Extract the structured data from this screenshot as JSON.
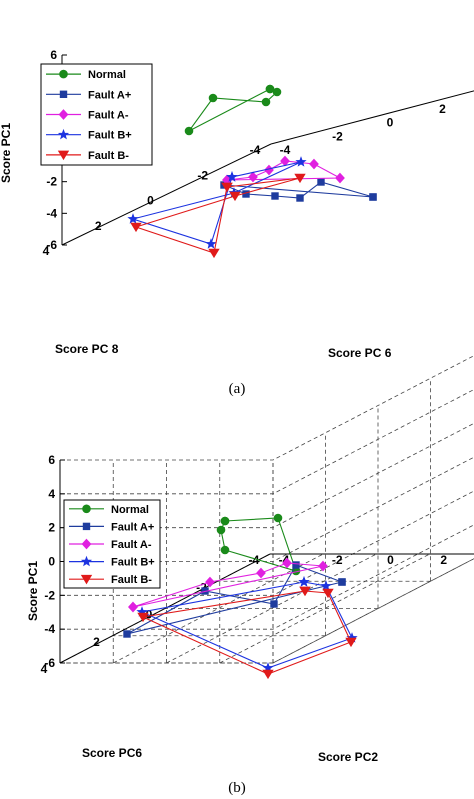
{
  "chart_data": [
    {
      "type": "scatter",
      "panel_label": "(a)",
      "zlabel": "Score PC1",
      "xlabel": "Score PC 8",
      "ylabel": "Score PC 6",
      "zticks": [
        "6",
        "4",
        "2",
        "0",
        "-2",
        "-4",
        "-6"
      ],
      "xticks": [
        "4",
        "2",
        "0",
        "-2",
        "-4"
      ],
      "yticks": [
        "-4",
        "-2",
        "0",
        "2",
        "4"
      ],
      "grid": true,
      "legend_position": "top-left",
      "series": [
        {
          "name": "Normal",
          "color": "#1a8a1a",
          "marker": "circle",
          "points": [
            [
              270,
              89
            ],
            [
              277,
              92
            ],
            [
              266,
              102
            ],
            [
              213,
              98
            ],
            [
              189,
              131
            ],
            [
              270,
              89
            ]
          ]
        },
        {
          "name": "Fault A+",
          "color": "#1f3c9e",
          "marker": "square",
          "points": [
            [
              373,
              197
            ],
            [
              321,
              182
            ],
            [
              300,
              198
            ],
            [
              275,
              196
            ],
            [
              246,
              194
            ],
            [
              224,
              185
            ],
            [
              373,
              197
            ]
          ]
        },
        {
          "name": "Fault A-",
          "color": "#e020e0",
          "marker": "diamond",
          "points": [
            [
              227,
              180
            ],
            [
              253,
              177
            ],
            [
              269,
              170
            ],
            [
              285,
              161
            ],
            [
              314,
              164
            ],
            [
              340,
              178
            ],
            [
              227,
              180
            ]
          ]
        },
        {
          "name": "Fault B+",
          "color": "#1c33e0",
          "marker": "star",
          "points": [
            [
              232,
              177
            ],
            [
              211,
              244
            ],
            [
              133,
              219
            ],
            [
              234,
              193
            ],
            [
              301,
              162
            ],
            [
              232,
              177
            ]
          ]
        },
        {
          "name": "Fault B-",
          "color": "#e01a1a",
          "marker": "triangle",
          "points": [
            [
              227,
              187
            ],
            [
              214,
              253
            ],
            [
              136,
              227
            ],
            [
              235,
              196
            ],
            [
              300,
              178
            ],
            [
              227,
              187
            ]
          ]
        }
      ]
    },
    {
      "type": "scatter",
      "panel_label": "(b)",
      "zlabel": "Score PC1",
      "xlabel": "Score PC6",
      "ylabel": "Score PC2",
      "zticks": [
        "6",
        "4",
        "2",
        "0",
        "-2",
        "-4",
        "-6"
      ],
      "xticks": [
        "4",
        "2",
        "0",
        "-2",
        "-4"
      ],
      "yticks": [
        "-4",
        "-2",
        "0",
        "2",
        "4"
      ],
      "grid": true,
      "legend_position": "top-left",
      "series": [
        {
          "name": "Normal",
          "color": "#1a8a1a",
          "marker": "circle",
          "points": [
            [
              225,
              521
            ],
            [
              278,
              518
            ],
            [
              296,
              571
            ],
            [
              225,
              550
            ],
            [
              221,
              530
            ],
            [
              225,
              521
            ]
          ]
        },
        {
          "name": "Fault A+",
          "color": "#1f3c9e",
          "marker": "square",
          "points": [
            [
              342,
              582
            ],
            [
              296,
              565
            ],
            [
              274,
              604
            ],
            [
              205,
              591
            ],
            [
              127,
              634
            ],
            [
              342,
              582
            ]
          ]
        },
        {
          "name": "Fault A-",
          "color": "#e020e0",
          "marker": "diamond",
          "points": [
            [
              133,
              607
            ],
            [
              210,
              582
            ],
            [
              261,
              573
            ],
            [
              287,
              563
            ],
            [
              323,
              566
            ],
            [
              133,
              607
            ]
          ]
        },
        {
          "name": "Fault B+",
          "color": "#1c33e0",
          "marker": "star",
          "points": [
            [
              304,
              582
            ],
            [
              326,
              586
            ],
            [
              352,
              638
            ],
            [
              268,
              668
            ],
            [
              142,
              612
            ],
            [
              304,
              582
            ]
          ]
        },
        {
          "name": "Fault B-",
          "color": "#e01a1a",
          "marker": "triangle",
          "points": [
            [
              305,
              591
            ],
            [
              328,
              593
            ],
            [
              351,
              642
            ],
            [
              268,
              674
            ],
            [
              143,
              617
            ],
            [
              305,
              591
            ]
          ]
        }
      ]
    }
  ]
}
